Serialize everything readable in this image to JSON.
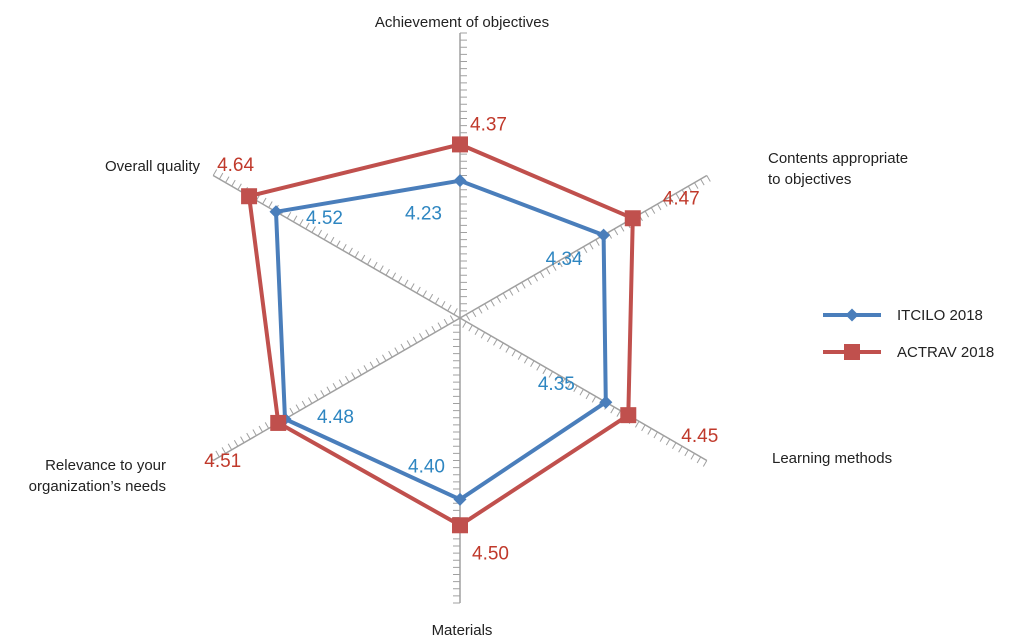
{
  "chart_data": {
    "type": "radar",
    "axes": [
      {
        "label_lines": [
          "Achievement of objectives"
        ]
      },
      {
        "label_lines": [
          "Contents appropriate",
          "to objectives"
        ]
      },
      {
        "label_lines": [
          "Learning methods"
        ]
      },
      {
        "label_lines": [
          "Materials"
        ]
      },
      {
        "label_lines": [
          "Relevance to your",
          "organization’s needs"
        ]
      },
      {
        "label_lines": [
          "Overall quality"
        ]
      }
    ],
    "series": [
      {
        "name": "ITCILO 2018",
        "color": "#4a7ebb",
        "label_color": "#2e86c1",
        "marker": "diamond",
        "values": [
          4.23,
          4.34,
          4.35,
          4.4,
          4.48,
          4.52
        ],
        "value_labels": [
          "4.23",
          "4.34",
          "4.35",
          "4.40",
          "4.48",
          "4.52"
        ]
      },
      {
        "name": "ACTRAV 2018",
        "color": "#c0504d",
        "label_color": "#c0392b",
        "marker": "square",
        "values": [
          4.37,
          4.47,
          4.45,
          4.5,
          4.51,
          4.64
        ],
        "value_labels": [
          "4.37",
          "4.47",
          "4.45",
          "4.50",
          "4.51",
          "4.64"
        ]
      }
    ],
    "axis_range": [
      3.7,
      4.8
    ],
    "legend_position": "right",
    "axis_color": "#a0a0a0"
  }
}
